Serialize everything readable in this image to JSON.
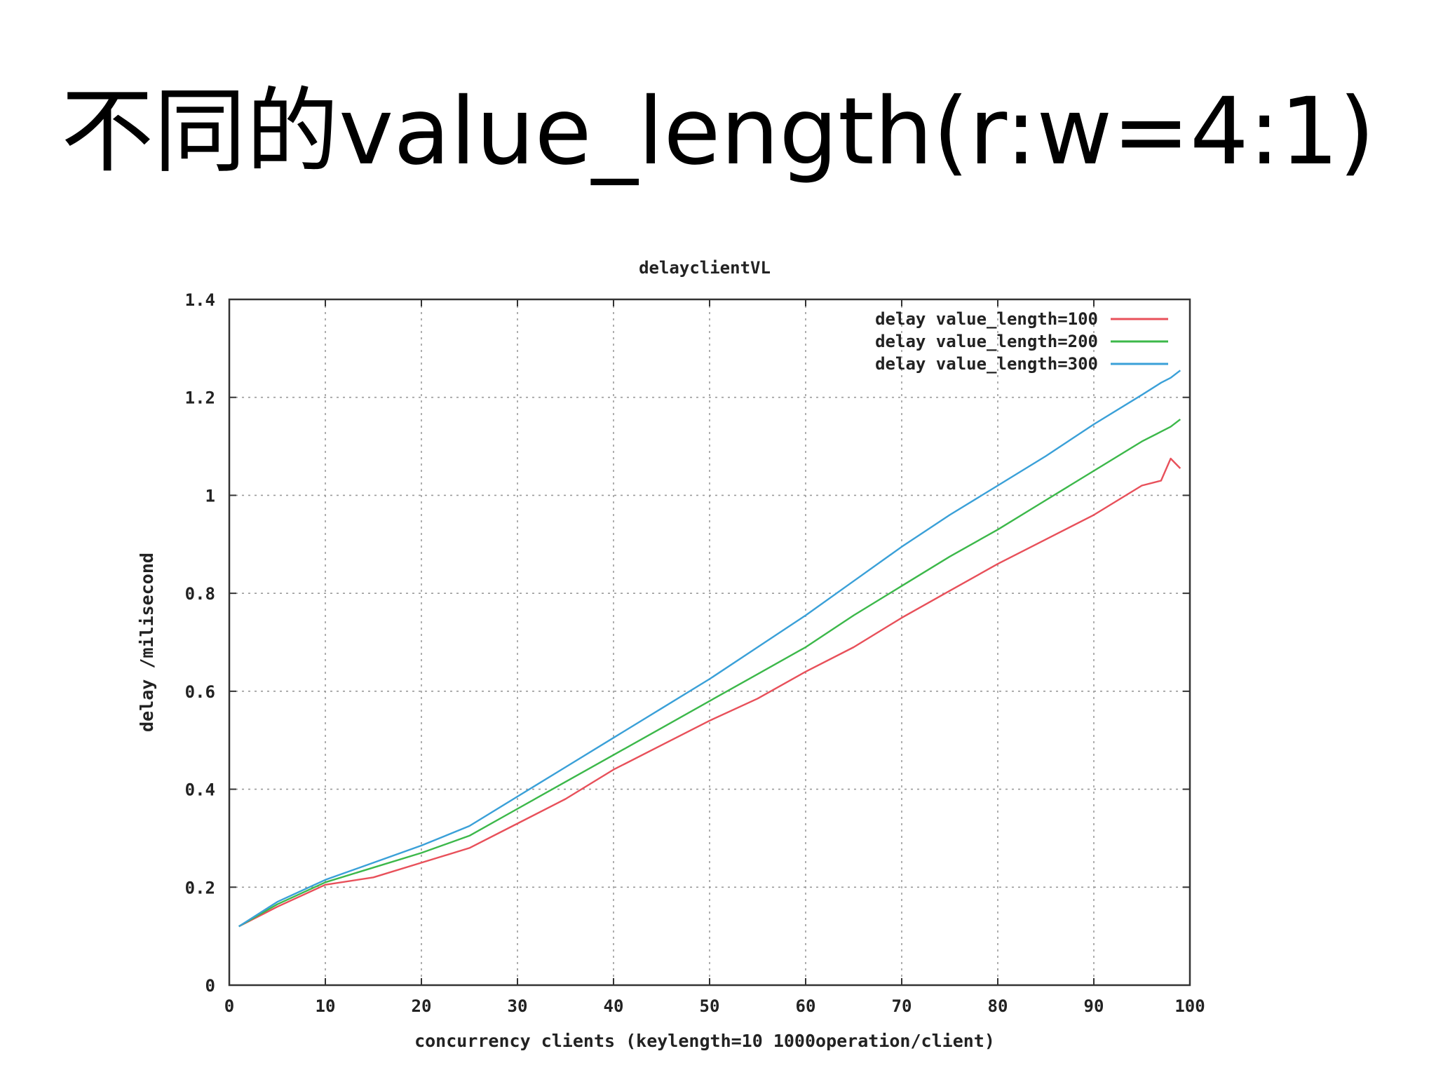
{
  "slide": {
    "title": "不同的value_length(r:w=4:1)"
  },
  "chart_data": {
    "type": "line",
    "title": "delayclientVL",
    "xlabel": "concurrency clients (keylength=10 1000operation/client)",
    "ylabel": "delay /milisecond",
    "xlim": [
      0,
      100
    ],
    "ylim": [
      0,
      1.4
    ],
    "x_ticks": [
      "0",
      "10",
      "20",
      "30",
      "40",
      "50",
      "60",
      "70",
      "80",
      "90",
      "100"
    ],
    "y_ticks": [
      "0",
      "0.2",
      "0.4",
      "0.6",
      "0.8",
      "1",
      "1.2",
      "1.4"
    ],
    "grid": true,
    "legend_position": "top-right",
    "x": [
      1,
      5,
      10,
      15,
      20,
      25,
      30,
      35,
      40,
      45,
      50,
      55,
      60,
      65,
      70,
      75,
      80,
      85,
      90,
      95,
      97,
      98,
      99
    ],
    "series": [
      {
        "name": "delay value_length=100",
        "color": "#e8505a",
        "values": [
          0.12,
          0.16,
          0.205,
          0.22,
          0.25,
          0.28,
          0.33,
          0.38,
          0.44,
          0.49,
          0.54,
          0.585,
          0.64,
          0.69,
          0.75,
          0.805,
          0.86,
          0.91,
          0.96,
          1.02,
          1.03,
          1.075,
          1.055
        ]
      },
      {
        "name": "delay value_length=200",
        "color": "#3cb84a",
        "values": [
          0.12,
          0.165,
          0.21,
          0.24,
          0.27,
          0.305,
          0.36,
          0.415,
          0.47,
          0.525,
          0.58,
          0.635,
          0.69,
          0.755,
          0.815,
          0.875,
          0.93,
          0.99,
          1.05,
          1.11,
          1.13,
          1.14,
          1.155
        ]
      },
      {
        "name": "delay value_length=300",
        "color": "#3aa0d8",
        "values": [
          0.12,
          0.17,
          0.215,
          0.25,
          0.285,
          0.325,
          0.385,
          0.445,
          0.505,
          0.565,
          0.625,
          0.69,
          0.755,
          0.825,
          0.895,
          0.96,
          1.02,
          1.08,
          1.145,
          1.205,
          1.23,
          1.24,
          1.255
        ]
      }
    ]
  }
}
